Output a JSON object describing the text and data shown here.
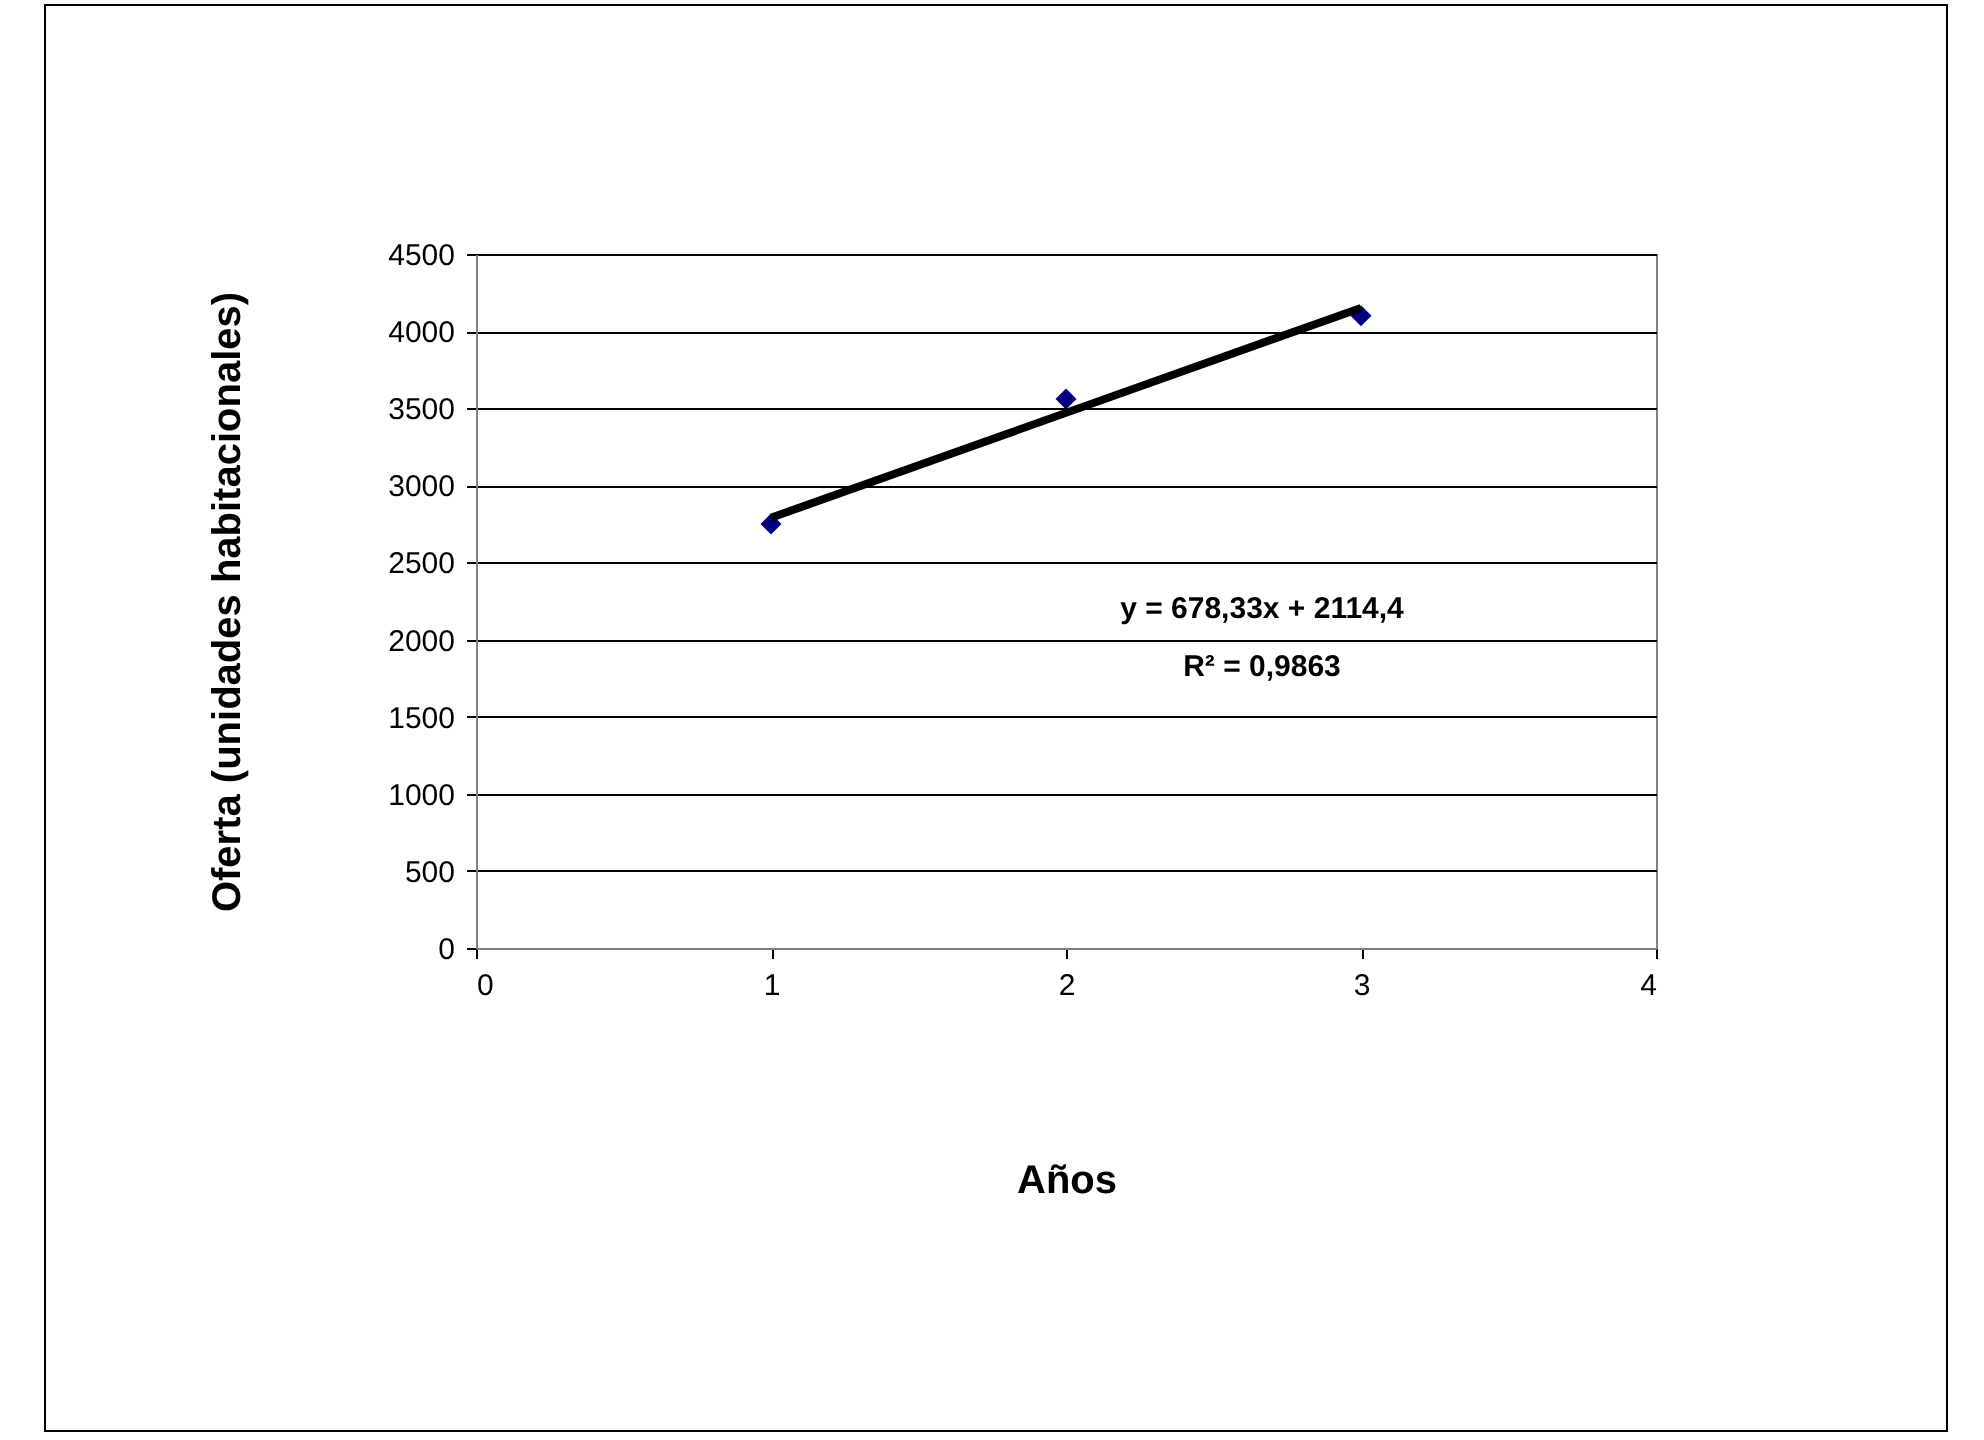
{
  "chart_data": {
    "type": "scatter",
    "xlabel": "Años",
    "ylabel": "Oferta (unidades habitacionales)",
    "xlim": [
      0,
      4
    ],
    "xticks": [
      0,
      1,
      2,
      3,
      4
    ],
    "ylim": [
      0,
      4500
    ],
    "yticks": [
      0,
      500,
      1000,
      1500,
      2000,
      2500,
      3000,
      3500,
      4000,
      4500
    ],
    "grid": "y",
    "marker": "diamond",
    "series": [
      {
        "color": "#000080",
        "x": [
          1,
          2,
          3
        ],
        "values": [
          2750,
          3560,
          4100
        ]
      },
      {
        "type": "line",
        "marker": "none",
        "color": "#000000",
        "x": [
          1,
          3
        ],
        "values": [
          2790,
          4150
        ]
      }
    ],
    "annotations": [
      "y = 678,33x + 2114,4",
      "R² = 0,9863"
    ]
  }
}
